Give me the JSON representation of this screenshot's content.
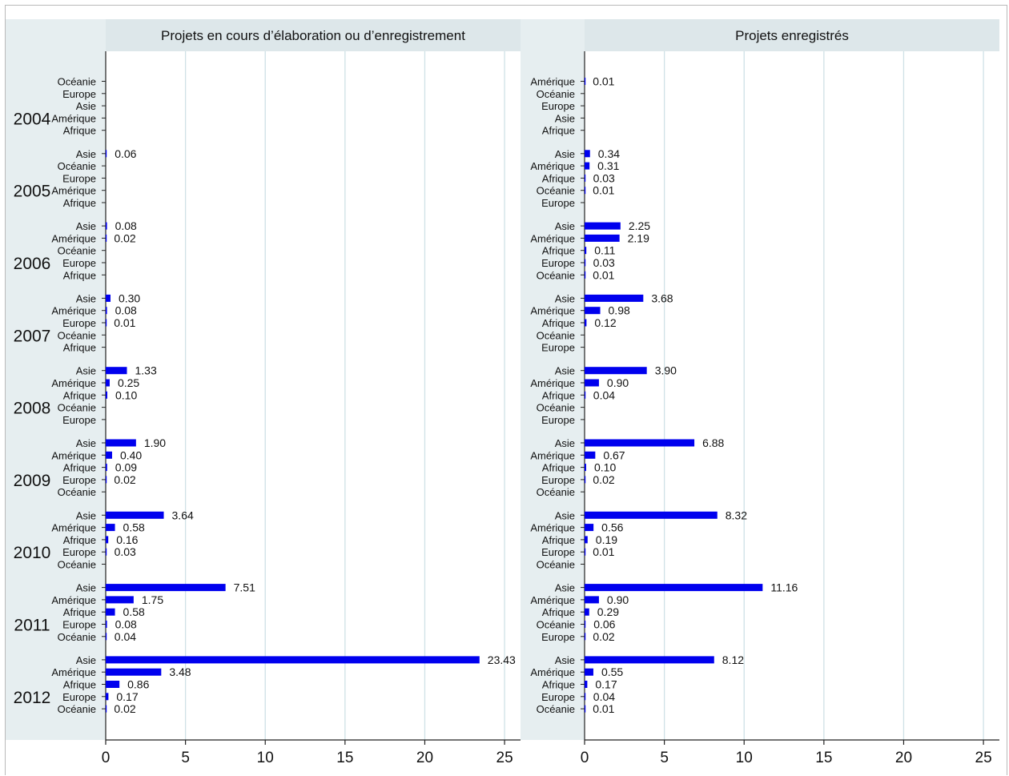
{
  "chart_data": [
    {
      "type": "bar",
      "orientation": "horizontal",
      "title": "Projets en cours d’élaboration ou d’enregistrement",
      "xlim": [
        0,
        26
      ],
      "xticks": [
        "0",
        "5",
        "10",
        "15",
        "20",
        "25"
      ],
      "grid": true,
      "groups": [
        {
          "year": "2004",
          "bars": [
            {
              "region": "Océanie",
              "label": ""
            },
            {
              "region": "Europe",
              "label": ""
            },
            {
              "region": "Asie",
              "label": ""
            },
            {
              "region": "Amérique",
              "label": ""
            },
            {
              "region": "Afrique",
              "label": ""
            }
          ]
        },
        {
          "year": "2005",
          "bars": [
            {
              "region": "Asie",
              "value": 0.06,
              "label": "0.06"
            },
            {
              "region": "Océanie",
              "label": ""
            },
            {
              "region": "Europe",
              "label": ""
            },
            {
              "region": "Amérique",
              "label": ""
            },
            {
              "region": "Afrique",
              "label": ""
            }
          ]
        },
        {
          "year": "2006",
          "bars": [
            {
              "region": "Asie",
              "value": 0.08,
              "label": "0.08"
            },
            {
              "region": "Amérique",
              "value": 0.02,
              "label": "0.02"
            },
            {
              "region": "Océanie",
              "label": ""
            },
            {
              "region": "Europe",
              "label": ""
            },
            {
              "region": "Afrique",
              "label": ""
            }
          ]
        },
        {
          "year": "2007",
          "bars": [
            {
              "region": "Asie",
              "value": 0.3,
              "label": "0.30"
            },
            {
              "region": "Amérique",
              "value": 0.08,
              "label": "0.08"
            },
            {
              "region": "Europe",
              "value": 0.01,
              "label": "0.01"
            },
            {
              "region": "Océanie",
              "label": ""
            },
            {
              "region": "Afrique",
              "label": ""
            }
          ]
        },
        {
          "year": "2008",
          "bars": [
            {
              "region": "Asie",
              "value": 1.33,
              "label": "1.33"
            },
            {
              "region": "Amérique",
              "value": 0.25,
              "label": "0.25"
            },
            {
              "region": "Afrique",
              "value": 0.1,
              "label": "0.10"
            },
            {
              "region": "Océanie",
              "label": ""
            },
            {
              "region": "Europe",
              "label": ""
            }
          ]
        },
        {
          "year": "2009",
          "bars": [
            {
              "region": "Asie",
              "value": 1.9,
              "label": "1.90"
            },
            {
              "region": "Amérique",
              "value": 0.4,
              "label": "0.40"
            },
            {
              "region": "Afrique",
              "value": 0.09,
              "label": "0.09"
            },
            {
              "region": "Europe",
              "value": 0.02,
              "label": "0.02"
            },
            {
              "region": "Océanie",
              "label": ""
            }
          ]
        },
        {
          "year": "2010",
          "bars": [
            {
              "region": "Asie",
              "value": 3.64,
              "label": "3.64"
            },
            {
              "region": "Amérique",
              "value": 0.58,
              "label": "0.58"
            },
            {
              "region": "Afrique",
              "value": 0.16,
              "label": "0.16"
            },
            {
              "region": "Europe",
              "value": 0.03,
              "label": "0.03"
            },
            {
              "region": "Océanie",
              "label": ""
            }
          ]
        },
        {
          "year": "2011",
          "bars": [
            {
              "region": "Asie",
              "value": 7.51,
              "label": "7.51"
            },
            {
              "region": "Amérique",
              "value": 1.75,
              "label": "1.75"
            },
            {
              "region": "Afrique",
              "value": 0.58,
              "label": "0.58"
            },
            {
              "region": "Europe",
              "value": 0.08,
              "label": "0.08"
            },
            {
              "region": "Océanie",
              "value": 0.04,
              "label": "0.04"
            }
          ]
        },
        {
          "year": "2012",
          "bars": [
            {
              "region": "Asie",
              "value": 23.43,
              "label": "23.43"
            },
            {
              "region": "Amérique",
              "value": 3.48,
              "label": "3.48"
            },
            {
              "region": "Afrique",
              "value": 0.86,
              "label": "0.86"
            },
            {
              "region": "Europe",
              "value": 0.17,
              "label": "0.17"
            },
            {
              "region": "Océanie",
              "value": 0.02,
              "label": "0.02"
            }
          ]
        }
      ]
    },
    {
      "type": "bar",
      "orientation": "horizontal",
      "title": "Projets enregistrés",
      "xlim": [
        0,
        26
      ],
      "xticks": [
        "0",
        "5",
        "10",
        "15",
        "20",
        "25"
      ],
      "grid": true,
      "groups": [
        {
          "year": "",
          "bars": [
            {
              "region": "Amérique",
              "value": 0.01,
              "label": "0.01"
            },
            {
              "region": "Océanie",
              "label": ""
            },
            {
              "region": "Europe",
              "label": ""
            },
            {
              "region": "Asie",
              "label": ""
            },
            {
              "region": "Afrique",
              "label": ""
            }
          ]
        },
        {
          "year": "",
          "bars": [
            {
              "region": "Asie",
              "value": 0.34,
              "label": "0.34"
            },
            {
              "region": "Amérique",
              "value": 0.31,
              "label": "0.31"
            },
            {
              "region": "Afrique",
              "value": 0.03,
              "label": "0.03"
            },
            {
              "region": "Océanie",
              "value": 0.01,
              "label": "0.01"
            },
            {
              "region": "Europe",
              "label": ""
            }
          ]
        },
        {
          "year": "",
          "bars": [
            {
              "region": "Asie",
              "value": 2.25,
              "label": "2.25"
            },
            {
              "region": "Amérique",
              "value": 2.19,
              "label": "2.19"
            },
            {
              "region": "Afrique",
              "value": 0.11,
              "label": "0.11"
            },
            {
              "region": "Europe",
              "value": 0.03,
              "label": "0.03"
            },
            {
              "region": "Océanie",
              "value": 0.01,
              "label": "0.01"
            }
          ]
        },
        {
          "year": "",
          "bars": [
            {
              "region": "Asie",
              "value": 3.68,
              "label": "3.68"
            },
            {
              "region": "Amérique",
              "value": 0.98,
              "label": "0.98"
            },
            {
              "region": "Afrique",
              "value": 0.12,
              "label": "0.12"
            },
            {
              "region": "Océanie",
              "label": ""
            },
            {
              "region": "Europe",
              "label": ""
            }
          ]
        },
        {
          "year": "",
          "bars": [
            {
              "region": "Asie",
              "value": 3.9,
              "label": "3.90"
            },
            {
              "region": "Amérique",
              "value": 0.9,
              "label": "0.90"
            },
            {
              "region": "Afrique",
              "value": 0.04,
              "label": "0.04"
            },
            {
              "region": "Océanie",
              "label": ""
            },
            {
              "region": "Europe",
              "label": ""
            }
          ]
        },
        {
          "year": "",
          "bars": [
            {
              "region": "Asie",
              "value": 6.88,
              "label": "6.88"
            },
            {
              "region": "Amérique",
              "value": 0.67,
              "label": "0.67"
            },
            {
              "region": "Afrique",
              "value": 0.1,
              "label": "0.10"
            },
            {
              "region": "Europe",
              "value": 0.02,
              "label": "0.02"
            },
            {
              "region": "Océanie",
              "label": ""
            }
          ]
        },
        {
          "year": "",
          "bars": [
            {
              "region": "Asie",
              "value": 8.32,
              "label": "8.32"
            },
            {
              "region": "Amérique",
              "value": 0.56,
              "label": "0.56"
            },
            {
              "region": "Afrique",
              "value": 0.19,
              "label": "0.19"
            },
            {
              "region": "Europe",
              "value": 0.01,
              "label": "0.01"
            },
            {
              "region": "Océanie",
              "label": ""
            }
          ]
        },
        {
          "year": "",
          "bars": [
            {
              "region": "Asie",
              "value": 11.16,
              "label": "11.16"
            },
            {
              "region": "Amérique",
              "value": 0.9,
              "label": "0.90"
            },
            {
              "region": "Afrique",
              "value": 0.29,
              "label": "0.29"
            },
            {
              "region": "Océanie",
              "value": 0.06,
              "label": "0.06"
            },
            {
              "region": "Europe",
              "value": 0.02,
              "label": "0.02"
            }
          ]
        },
        {
          "year": "",
          "bars": [
            {
              "region": "Asie",
              "value": 8.12,
              "label": "8.12"
            },
            {
              "region": "Amérique",
              "value": 0.55,
              "label": "0.55"
            },
            {
              "region": "Afrique",
              "value": 0.17,
              "label": "0.17"
            },
            {
              "region": "Europe",
              "value": 0.04,
              "label": "0.04"
            },
            {
              "region": "Océanie",
              "value": 0.01,
              "label": "0.01"
            }
          ]
        }
      ]
    }
  ],
  "colors": {
    "bar": "#0000ee",
    "grid": "#cfe1e6",
    "header_bg": "#dde7ea",
    "side_bg": "#e6eef0",
    "axis": "#222222"
  }
}
